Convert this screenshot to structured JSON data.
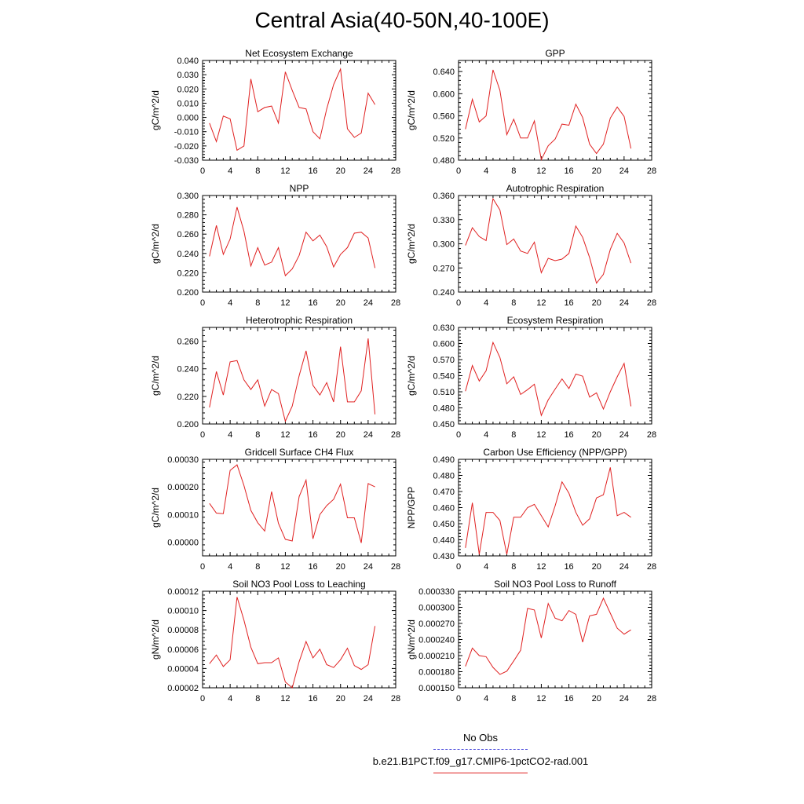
{
  "title": "Central Asia(40-50N,40-100E)",
  "legend": [
    {
      "label": "No Obs",
      "color": "#5555dd",
      "style": "dashed"
    },
    {
      "label": "b.e21.B1PCT.f09_g17.CMIP6-1pctCO2-rad.001",
      "color": "#e02020",
      "style": "solid"
    }
  ],
  "chart_data": [
    {
      "type": "line",
      "title": "Net Ecosystem Exchange",
      "xlabel": "",
      "ylabel": "gC/m^2/d",
      "xlim": [
        0,
        28
      ],
      "xticks": [
        "0",
        "4",
        "8",
        "12",
        "16",
        "20",
        "24",
        "28"
      ],
      "ylim": [
        -0.03,
        0.04
      ],
      "yticks": [
        "-0.030",
        "-0.020",
        "-0.010",
        "0.000",
        "0.010",
        "0.020",
        "0.030",
        "0.040"
      ],
      "x": [
        1,
        2,
        3,
        4,
        5,
        6,
        7,
        8,
        9,
        10,
        11,
        12,
        13,
        14,
        15,
        16,
        17,
        18,
        19,
        20,
        21,
        22,
        23,
        24,
        25
      ],
      "series": [
        {
          "color": "#e02020",
          "values": [
            -0.004,
            -0.017,
            0.001,
            -0.001,
            -0.023,
            -0.02,
            0.027,
            0.004,
            0.007,
            0.008,
            -0.004,
            0.032,
            0.019,
            0.007,
            0.006,
            -0.01,
            -0.015,
            0.006,
            0.023,
            0.034,
            -0.008,
            -0.014,
            -0.011,
            0.017,
            0.009
          ]
        }
      ]
    },
    {
      "type": "line",
      "title": "GPP",
      "xlabel": "",
      "ylabel": "gC/m^2/d",
      "xlim": [
        0,
        28
      ],
      "xticks": [
        "0",
        "4",
        "8",
        "12",
        "16",
        "20",
        "24",
        "28"
      ],
      "ylim": [
        0.48,
        0.66
      ],
      "yticks": [
        "0.480",
        "0.520",
        "0.560",
        "0.600",
        "0.640"
      ],
      "x": [
        1,
        2,
        3,
        4,
        5,
        6,
        7,
        8,
        9,
        10,
        11,
        12,
        13,
        14,
        15,
        16,
        17,
        18,
        19,
        20,
        21,
        22,
        23,
        24,
        25
      ],
      "series": [
        {
          "color": "#e02020",
          "values": [
            0.536,
            0.59,
            0.549,
            0.56,
            0.643,
            0.606,
            0.526,
            0.554,
            0.52,
            0.52,
            0.551,
            0.481,
            0.506,
            0.518,
            0.545,
            0.543,
            0.581,
            0.557,
            0.509,
            0.492,
            0.509,
            0.556,
            0.576,
            0.559,
            0.501
          ]
        }
      ]
    },
    {
      "type": "line",
      "title": "NPP",
      "xlabel": "",
      "ylabel": "gC/m^2/d",
      "xlim": [
        0,
        28
      ],
      "xticks": [
        "0",
        "4",
        "8",
        "12",
        "16",
        "20",
        "24",
        "28"
      ],
      "ylim": [
        0.2,
        0.3
      ],
      "yticks": [
        "0.200",
        "0.220",
        "0.240",
        "0.260",
        "0.280",
        "0.300"
      ],
      "x": [
        1,
        2,
        3,
        4,
        5,
        6,
        7,
        8,
        9,
        10,
        11,
        12,
        13,
        14,
        15,
        16,
        17,
        18,
        19,
        20,
        21,
        22,
        23,
        24,
        25
      ],
      "series": [
        {
          "color": "#e02020",
          "values": [
            0.237,
            0.269,
            0.239,
            0.255,
            0.288,
            0.263,
            0.227,
            0.246,
            0.228,
            0.231,
            0.246,
            0.217,
            0.224,
            0.238,
            0.262,
            0.253,
            0.259,
            0.247,
            0.226,
            0.239,
            0.246,
            0.261,
            0.262,
            0.256,
            0.225
          ]
        }
      ]
    },
    {
      "type": "line",
      "title": "Autotrophic Respiration",
      "xlabel": "",
      "ylabel": "gC/m^2/d",
      "xlim": [
        0,
        28
      ],
      "xticks": [
        "0",
        "4",
        "8",
        "12",
        "16",
        "20",
        "24",
        "28"
      ],
      "ylim": [
        0.24,
        0.36
      ],
      "yticks": [
        "0.240",
        "0.270",
        "0.300",
        "0.330",
        "0.360"
      ],
      "x": [
        1,
        2,
        3,
        4,
        5,
        6,
        7,
        8,
        9,
        10,
        11,
        12,
        13,
        14,
        15,
        16,
        17,
        18,
        19,
        20,
        21,
        22,
        23,
        24,
        25
      ],
      "series": [
        {
          "color": "#e02020",
          "values": [
            0.298,
            0.32,
            0.309,
            0.304,
            0.356,
            0.342,
            0.299,
            0.306,
            0.291,
            0.288,
            0.302,
            0.264,
            0.282,
            0.279,
            0.281,
            0.288,
            0.322,
            0.308,
            0.283,
            0.251,
            0.262,
            0.293,
            0.313,
            0.301,
            0.276
          ]
        }
      ]
    },
    {
      "type": "line",
      "title": "Heterotrophic Respiration",
      "xlabel": "",
      "ylabel": "gC/m^2/d",
      "xlim": [
        0,
        28
      ],
      "xticks": [
        "0",
        "4",
        "8",
        "12",
        "16",
        "20",
        "24",
        "28"
      ],
      "ylim": [
        0.2,
        0.27
      ],
      "yticks": [
        "0.200",
        "0.220",
        "0.240",
        "0.260"
      ],
      "x": [
        1,
        2,
        3,
        4,
        5,
        6,
        7,
        8,
        9,
        10,
        11,
        12,
        13,
        14,
        15,
        16,
        17,
        18,
        19,
        20,
        21,
        22,
        23,
        24,
        25
      ],
      "series": [
        {
          "color": "#e02020",
          "values": [
            0.212,
            0.238,
            0.221,
            0.245,
            0.246,
            0.232,
            0.225,
            0.232,
            0.213,
            0.225,
            0.222,
            0.202,
            0.213,
            0.235,
            0.253,
            0.228,
            0.221,
            0.23,
            0.216,
            0.256,
            0.216,
            0.216,
            0.224,
            0.262,
            0.207
          ]
        }
      ]
    },
    {
      "type": "line",
      "title": "Ecosystem Respiration",
      "xlabel": "",
      "ylabel": "gC/m^2/d",
      "xlim": [
        0,
        28
      ],
      "xticks": [
        "0",
        "4",
        "8",
        "12",
        "16",
        "20",
        "24",
        "28"
      ],
      "ylim": [
        0.45,
        0.63
      ],
      "yticks": [
        "0.450",
        "0.480",
        "0.510",
        "0.540",
        "0.570",
        "0.600",
        "0.630"
      ],
      "x": [
        1,
        2,
        3,
        4,
        5,
        6,
        7,
        8,
        9,
        10,
        11,
        12,
        13,
        14,
        15,
        16,
        17,
        18,
        19,
        20,
        21,
        22,
        23,
        24,
        25
      ],
      "series": [
        {
          "color": "#e02020",
          "values": [
            0.511,
            0.559,
            0.53,
            0.549,
            0.602,
            0.574,
            0.525,
            0.538,
            0.505,
            0.514,
            0.524,
            0.466,
            0.495,
            0.515,
            0.534,
            0.516,
            0.543,
            0.539,
            0.5,
            0.508,
            0.478,
            0.51,
            0.538,
            0.563,
            0.483
          ]
        }
      ]
    },
    {
      "type": "line",
      "title": "Gridcell Surface CH4 Flux",
      "xlabel": "",
      "ylabel": "gC/m^2/d",
      "xlim": [
        0,
        28
      ],
      "xticks": [
        "0",
        "4",
        "8",
        "12",
        "16",
        "20",
        "24",
        "28"
      ],
      "ylim": [
        -5e-05,
        0.0003
      ],
      "yticks": [
        "0.00000",
        "0.00010",
        "0.00020",
        "0.00030"
      ],
      "x": [
        1,
        2,
        3,
        4,
        5,
        6,
        7,
        8,
        9,
        10,
        11,
        12,
        13,
        14,
        15,
        16,
        17,
        18,
        19,
        20,
        21,
        22,
        23,
        24,
        25
      ],
      "series": [
        {
          "color": "#e02020",
          "values": [
            0.00014,
            0.000105,
            0.000103,
            0.00026,
            0.00028,
            0.000205,
            0.000115,
            7e-05,
            4e-05,
            0.000183,
            6.8e-05,
            1e-05,
            4e-06,
            0.000165,
            0.000225,
            1.2e-05,
            0.0001,
            0.000132,
            0.000155,
            0.00021,
            8.8e-05,
            8.8e-05,
            -3e-06,
            0.000212,
            0.0002
          ]
        }
      ]
    },
    {
      "type": "line",
      "title": "Carbon Use Efficiency (NPP/GPP)",
      "xlabel": "",
      "ylabel": "NPP/GPP",
      "xlim": [
        0,
        28
      ],
      "xticks": [
        "0",
        "4",
        "8",
        "12",
        "16",
        "20",
        "24",
        "28"
      ],
      "ylim": [
        0.43,
        0.49
      ],
      "yticks": [
        "0.430",
        "0.440",
        "0.450",
        "0.460",
        "0.470",
        "0.480",
        "0.490"
      ],
      "x": [
        1,
        2,
        3,
        4,
        5,
        6,
        7,
        8,
        9,
        10,
        11,
        12,
        13,
        14,
        15,
        16,
        17,
        18,
        19,
        20,
        21,
        22,
        23,
        24,
        25
      ],
      "series": [
        {
          "color": "#e02020",
          "values": [
            0.435,
            0.463,
            0.431,
            0.457,
            0.457,
            0.452,
            0.431,
            0.454,
            0.454,
            0.46,
            0.462,
            0.455,
            0.448,
            0.461,
            0.476,
            0.469,
            0.457,
            0.449,
            0.453,
            0.466,
            0.468,
            0.485,
            0.455,
            0.457,
            0.454
          ]
        }
      ]
    },
    {
      "type": "line",
      "title": "Soil NO3 Pool Loss to Leaching",
      "xlabel": "",
      "ylabel": "gN/m^2/d",
      "xlim": [
        0,
        28
      ],
      "xticks": [
        "0",
        "4",
        "8",
        "12",
        "16",
        "20",
        "24",
        "28"
      ],
      "ylim": [
        2e-05,
        0.00012
      ],
      "yticks": [
        "0.00002",
        "0.00004",
        "0.00006",
        "0.00008",
        "0.00010",
        "0.00012"
      ],
      "x": [
        1,
        2,
        3,
        4,
        5,
        6,
        7,
        8,
        9,
        10,
        11,
        12,
        13,
        14,
        15,
        16,
        17,
        18,
        19,
        20,
        21,
        22,
        23,
        24,
        25
      ],
      "series": [
        {
          "color": "#e02020",
          "values": [
            4.5e-05,
            5.4e-05,
            4.2e-05,
            4.9e-05,
            0.000114,
            9e-05,
            6.2e-05,
            4.5e-05,
            4.6e-05,
            4.6e-05,
            5.1e-05,
            2.6e-05,
            2e-05,
            4.7e-05,
            6.8e-05,
            5.1e-05,
            6e-05,
            4.4e-05,
            4.1e-05,
            4.9e-05,
            6.1e-05,
            4.3e-05,
            3.9e-05,
            4.4e-05,
            8.4e-05
          ]
        }
      ]
    },
    {
      "type": "line",
      "title": "Soil NO3 Pool Loss to Runoff",
      "xlabel": "",
      "ylabel": "gN/m^2/d",
      "xlim": [
        0,
        28
      ],
      "xticks": [
        "0",
        "4",
        "8",
        "12",
        "16",
        "20",
        "24",
        "28"
      ],
      "ylim": [
        0.00015,
        0.00033
      ],
      "yticks": [
        "0.000150",
        "0.000180",
        "0.000210",
        "0.000240",
        "0.000270",
        "0.000300",
        "0.000330"
      ],
      "x": [
        1,
        2,
        3,
        4,
        5,
        6,
        7,
        8,
        9,
        10,
        11,
        12,
        13,
        14,
        15,
        16,
        17,
        18,
        19,
        20,
        21,
        22,
        23,
        24,
        25
      ],
      "series": [
        {
          "color": "#e02020",
          "values": [
            0.00019,
            0.000224,
            0.00021,
            0.000208,
            0.000188,
            0.000175,
            0.000181,
            0.0002,
            0.00022,
            0.000298,
            0.000295,
            0.000243,
            0.000307,
            0.00028,
            0.000275,
            0.000294,
            0.000287,
            0.000235,
            0.000284,
            0.000287,
            0.000317,
            0.000289,
            0.000261,
            0.00025,
            0.000258
          ]
        }
      ]
    }
  ]
}
